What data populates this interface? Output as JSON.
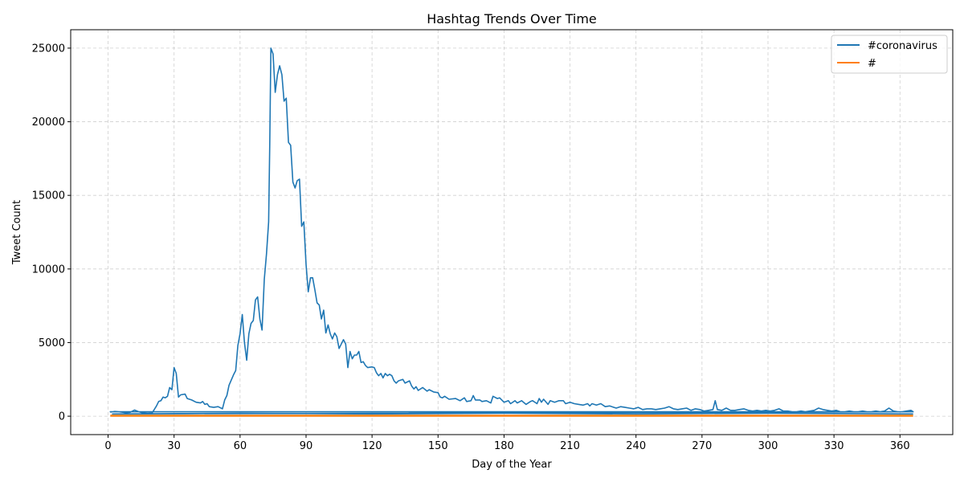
{
  "chart_data": {
    "type": "line",
    "title": "Hashtag Trends Over Time",
    "xlabel": "Day of the Year",
    "ylabel": "Tweet Count",
    "xlim": [
      -17,
      384
    ],
    "ylim": [
      -1250,
      26250
    ],
    "xticks": [
      0,
      30,
      60,
      90,
      120,
      150,
      180,
      210,
      240,
      270,
      300,
      330,
      360
    ],
    "yticks": [
      0,
      5000,
      10000,
      15000,
      20000,
      25000
    ],
    "grid": true,
    "grid_style": "dashed",
    "legend_position": "top-right",
    "series": [
      {
        "name": "#coronavirus",
        "color": "#1f77b4",
        "points": [
          [
            1,
            280
          ],
          [
            3,
            320
          ],
          [
            5,
            300
          ],
          [
            8,
            240
          ],
          [
            10,
            260
          ],
          [
            12,
            420
          ],
          [
            14,
            300
          ],
          [
            16,
            220
          ],
          [
            18,
            200
          ],
          [
            20,
            210
          ],
          [
            22,
            700
          ],
          [
            23,
            1000
          ],
          [
            24,
            1050
          ],
          [
            25,
            1300
          ],
          [
            26,
            1250
          ],
          [
            27,
            1350
          ],
          [
            28,
            1950
          ],
          [
            29,
            1800
          ],
          [
            30,
            3300
          ],
          [
            31,
            2900
          ],
          [
            32,
            1300
          ],
          [
            33,
            1450
          ],
          [
            35,
            1500
          ],
          [
            36,
            1200
          ],
          [
            38,
            1100
          ],
          [
            40,
            950
          ],
          [
            42,
            900
          ],
          [
            43,
            1000
          ],
          [
            44,
            800
          ],
          [
            45,
            850
          ],
          [
            46,
            650
          ],
          [
            48,
            600
          ],
          [
            50,
            650
          ],
          [
            52,
            500
          ],
          [
            53,
            1100
          ],
          [
            54,
            1400
          ],
          [
            55,
            2100
          ],
          [
            57,
            2800
          ],
          [
            58,
            3100
          ],
          [
            59,
            4800
          ],
          [
            60,
            5600
          ],
          [
            61,
            6900
          ],
          [
            62,
            5000
          ],
          [
            63,
            3800
          ],
          [
            64,
            5600
          ],
          [
            65,
            6300
          ],
          [
            66,
            6500
          ],
          [
            67,
            7900
          ],
          [
            68,
            8100
          ],
          [
            69,
            6600
          ],
          [
            70,
            5850
          ],
          [
            71,
            9300
          ],
          [
            72,
            11000
          ],
          [
            73,
            13200
          ],
          [
            73.5,
            18500
          ],
          [
            74,
            25000
          ],
          [
            75,
            24600
          ],
          [
            76,
            22000
          ],
          [
            77,
            23200
          ],
          [
            78,
            23800
          ],
          [
            79,
            23200
          ],
          [
            80,
            21400
          ],
          [
            81,
            21600
          ],
          [
            82,
            18600
          ],
          [
            83,
            18400
          ],
          [
            84,
            15900
          ],
          [
            85,
            15500
          ],
          [
            86,
            16000
          ],
          [
            87,
            16100
          ],
          [
            88,
            12900
          ],
          [
            89,
            13200
          ],
          [
            90,
            10300
          ],
          [
            91,
            8450
          ],
          [
            92,
            9400
          ],
          [
            93,
            9400
          ],
          [
            94,
            8600
          ],
          [
            95,
            7700
          ],
          [
            96,
            7550
          ],
          [
            97,
            6600
          ],
          [
            98,
            7200
          ],
          [
            99,
            5650
          ],
          [
            100,
            6200
          ],
          [
            101,
            5600
          ],
          [
            102,
            5250
          ],
          [
            103,
            5650
          ],
          [
            104,
            5400
          ],
          [
            105,
            4600
          ],
          [
            106,
            4900
          ],
          [
            107,
            5200
          ],
          [
            108,
            4900
          ],
          [
            109,
            3300
          ],
          [
            110,
            4400
          ],
          [
            111,
            3900
          ],
          [
            112,
            4150
          ],
          [
            113,
            4150
          ],
          [
            114,
            4400
          ],
          [
            115,
            3650
          ],
          [
            116,
            3700
          ],
          [
            117,
            3450
          ],
          [
            118,
            3300
          ],
          [
            120,
            3350
          ],
          [
            121,
            3300
          ],
          [
            122,
            2950
          ],
          [
            123,
            2750
          ],
          [
            124,
            2900
          ],
          [
            125,
            2600
          ],
          [
            126,
            2900
          ],
          [
            127,
            2750
          ],
          [
            128,
            2850
          ],
          [
            129,
            2750
          ],
          [
            130,
            2400
          ],
          [
            131,
            2250
          ],
          [
            132,
            2400
          ],
          [
            134,
            2500
          ],
          [
            135,
            2250
          ],
          [
            137,
            2400
          ],
          [
            138,
            2050
          ],
          [
            139,
            1850
          ],
          [
            140,
            2000
          ],
          [
            141,
            1750
          ],
          [
            143,
            1950
          ],
          [
            145,
            1700
          ],
          [
            146,
            1800
          ],
          [
            148,
            1650
          ],
          [
            150,
            1600
          ],
          [
            151,
            1300
          ],
          [
            152,
            1250
          ],
          [
            153,
            1350
          ],
          [
            155,
            1150
          ],
          [
            158,
            1200
          ],
          [
            160,
            1050
          ],
          [
            162,
            1250
          ],
          [
            163,
            1000
          ],
          [
            165,
            1050
          ],
          [
            166,
            1400
          ],
          [
            167,
            1100
          ],
          [
            169,
            1100
          ],
          [
            170,
            1000
          ],
          [
            172,
            1050
          ],
          [
            174,
            900
          ],
          [
            175,
            1350
          ],
          [
            177,
            1200
          ],
          [
            178,
            1250
          ],
          [
            180,
            950
          ],
          [
            182,
            1050
          ],
          [
            183,
            850
          ],
          [
            185,
            1050
          ],
          [
            186,
            900
          ],
          [
            188,
            1050
          ],
          [
            190,
            800
          ],
          [
            192,
            1000
          ],
          [
            193,
            1050
          ],
          [
            195,
            850
          ],
          [
            196,
            1200
          ],
          [
            197,
            950
          ],
          [
            198,
            1150
          ],
          [
            200,
            800
          ],
          [
            201,
            1050
          ],
          [
            203,
            950
          ],
          [
            205,
            1050
          ],
          [
            207,
            1050
          ],
          [
            208,
            850
          ],
          [
            210,
            950
          ],
          [
            212,
            850
          ],
          [
            214,
            800
          ],
          [
            216,
            750
          ],
          [
            218,
            850
          ],
          [
            219,
            700
          ],
          [
            220,
            850
          ],
          [
            222,
            750
          ],
          [
            224,
            850
          ],
          [
            226,
            650
          ],
          [
            228,
            700
          ],
          [
            230,
            600
          ],
          [
            231,
            550
          ],
          [
            233,
            650
          ],
          [
            235,
            600
          ],
          [
            237,
            550
          ],
          [
            239,
            500
          ],
          [
            241,
            600
          ],
          [
            243,
            450
          ],
          [
            245,
            500
          ],
          [
            247,
            500
          ],
          [
            249,
            450
          ],
          [
            251,
            500
          ],
          [
            253,
            550
          ],
          [
            255,
            650
          ],
          [
            257,
            500
          ],
          [
            259,
            450
          ],
          [
            261,
            500
          ],
          [
            263,
            550
          ],
          [
            265,
            400
          ],
          [
            267,
            500
          ],
          [
            269,
            450
          ],
          [
            271,
            350
          ],
          [
            273,
            400
          ],
          [
            275,
            450
          ],
          [
            276,
            1050
          ],
          [
            277,
            450
          ],
          [
            279,
            400
          ],
          [
            281,
            550
          ],
          [
            283,
            400
          ],
          [
            285,
            400
          ],
          [
            287,
            450
          ],
          [
            289,
            500
          ],
          [
            291,
            400
          ],
          [
            293,
            350
          ],
          [
            295,
            400
          ],
          [
            297,
            350
          ],
          [
            299,
            400
          ],
          [
            301,
            350
          ],
          [
            303,
            400
          ],
          [
            305,
            500
          ],
          [
            307,
            350
          ],
          [
            309,
            350
          ],
          [
            311,
            300
          ],
          [
            313,
            300
          ],
          [
            315,
            350
          ],
          [
            317,
            300
          ],
          [
            319,
            350
          ],
          [
            321,
            400
          ],
          [
            323,
            550
          ],
          [
            325,
            450
          ],
          [
            327,
            400
          ],
          [
            329,
            350
          ],
          [
            331,
            400
          ],
          [
            333,
            300
          ],
          [
            335,
            300
          ],
          [
            337,
            350
          ],
          [
            339,
            300
          ],
          [
            341,
            300
          ],
          [
            343,
            350
          ],
          [
            345,
            300
          ],
          [
            347,
            300
          ],
          [
            349,
            350
          ],
          [
            351,
            300
          ],
          [
            353,
            350
          ],
          [
            355,
            550
          ],
          [
            357,
            350
          ],
          [
            359,
            300
          ],
          [
            361,
            300
          ],
          [
            363,
            350
          ],
          [
            365,
            400
          ],
          [
            366,
            300
          ],
          [
            1,
            300
          ],
          [
            150,
            300
          ],
          [
            300,
            300
          ],
          [
            366,
            300
          ],
          [
            2,
            150
          ],
          [
            60,
            200
          ],
          [
            120,
            150
          ],
          [
            180,
            200
          ],
          [
            240,
            150
          ],
          [
            300,
            200
          ],
          [
            366,
            150
          ]
        ]
      },
      {
        "name": "#",
        "color": "#ff7f0e",
        "points": [
          [
            1,
            30
          ],
          [
            60,
            30
          ],
          [
            120,
            30
          ],
          [
            180,
            30
          ],
          [
            240,
            30
          ],
          [
            300,
            30
          ],
          [
            366,
            30
          ]
        ]
      }
    ]
  }
}
